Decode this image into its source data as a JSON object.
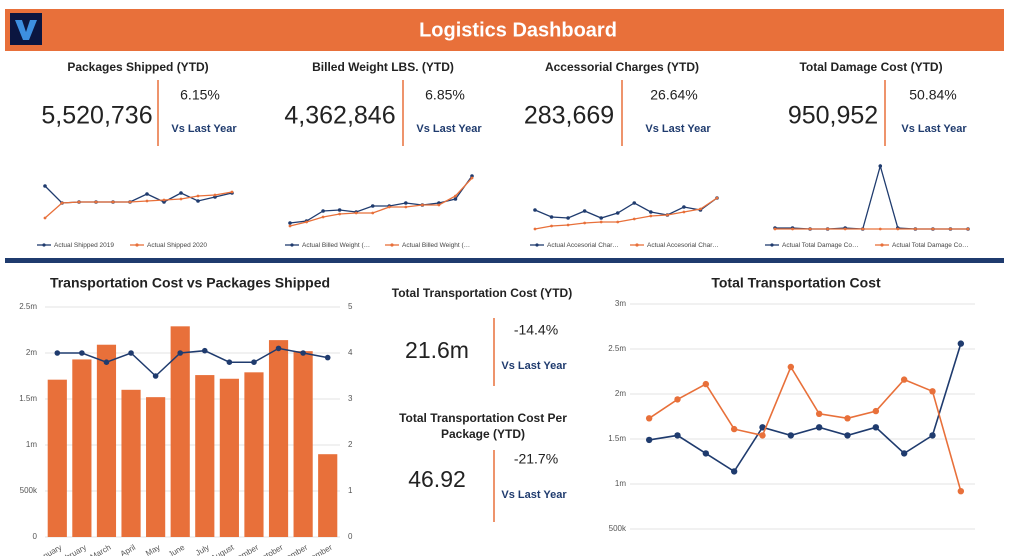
{
  "header": {
    "title": "Logistics Dashboard"
  },
  "kpis": [
    {
      "title": "Packages Shipped (YTD)",
      "value": "5,520,736",
      "change": "6.15%",
      "note": "Vs Last Year"
    },
    {
      "title": "Billed Weight LBS. (YTD)",
      "value": "4,362,846",
      "change": "6.85%",
      "note": "Vs Last Year"
    },
    {
      "title": "Accessorial Charges (YTD)",
      "value": "283,669",
      "change": "26.64%",
      "note": "Vs Last Year"
    },
    {
      "title": "Total Damage Cost (YTD)",
      "value": "950,952",
      "change": "50.84%",
      "note": "Vs Last Year"
    }
  ],
  "transport_kpis": [
    {
      "title": "Total Transportation Cost (YTD)",
      "value": "21.6m",
      "change": "-14.4%",
      "note": "Vs Last Year"
    },
    {
      "title": "Total Transportation Cost Per Package (YTD)",
      "value": "46.92",
      "change": "-21.7%",
      "note": "Vs Last Year"
    }
  ],
  "chart_data": [
    {
      "type": "line",
      "series": [
        {
          "name": "Actual Shipped 2019",
          "color": "#1f3b6e",
          "values": [
            44,
            27,
            28,
            28,
            28,
            28,
            36,
            28,
            37,
            29,
            33,
            37
          ]
        },
        {
          "name": "Actual Shipped 2020",
          "color": "#e8703a",
          "values": [
            12,
            27,
            28,
            28,
            28,
            28,
            29,
            30,
            31,
            34,
            35,
            38
          ]
        }
      ]
    },
    {
      "type": "line",
      "series": [
        {
          "name": "Actual Billed Weight (…",
          "color": "#1f3b6e",
          "values": [
            7,
            9,
            19,
            20,
            18,
            24,
            24,
            27,
            25,
            27,
            31,
            54
          ]
        },
        {
          "name": "Actual Billed Weight (…",
          "color": "#e8703a",
          "values": [
            4,
            8,
            13,
            16,
            17,
            17,
            23,
            23,
            25,
            25,
            34,
            52
          ]
        }
      ]
    },
    {
      "type": "line",
      "series": [
        {
          "name": "Actual Accesorial Char…",
          "color": "#1f3b6e",
          "values": [
            20,
            13,
            12,
            19,
            12,
            17,
            27,
            18,
            15,
            23,
            20,
            32
          ]
        },
        {
          "name": "Actual Accesorial Char…",
          "color": "#e8703a",
          "values": [
            1,
            4,
            5,
            7,
            8,
            8,
            11,
            14,
            15,
            18,
            21,
            32
          ]
        }
      ]
    },
    {
      "type": "line",
      "series": [
        {
          "name": "Actual Total Damage Co…",
          "color": "#1f3b6e",
          "values": [
            2,
            2,
            1,
            1,
            2,
            1,
            64,
            2,
            1,
            1,
            1,
            1
          ]
        },
        {
          "name": "Actual Total Damage Co…",
          "color": "#e8703a",
          "values": [
            1,
            1,
            1,
            1,
            1,
            1,
            1,
            1,
            1,
            1,
            1,
            1
          ]
        }
      ]
    },
    {
      "type": "bar",
      "title": "Transportation Cost vs Packages Shipped",
      "categories": [
        "January",
        "February",
        "March",
        "April",
        "May",
        "June",
        "July",
        "August",
        "September",
        "October",
        "November",
        "December"
      ],
      "series": [
        {
          "type": "bar",
          "color": "#e8703a",
          "values": [
            1710000,
            1930000,
            2090000,
            1600000,
            1520000,
            2290000,
            1760000,
            1720000,
            1790000,
            2140000,
            2020000,
            900000
          ]
        },
        {
          "type": "line",
          "axis": "y2",
          "color": "#1f3b6e",
          "values": [
            4.0,
            4.0,
            3.8,
            4.0,
            3.5,
            4.0,
            4.05,
            3.8,
            3.8,
            4.1,
            4.0,
            3.9
          ]
        }
      ],
      "ylim": [
        0,
        2500000
      ],
      "yticks": [
        0,
        {
          "value": 500000,
          "label": "500k"
        },
        {
          "value": 1000000,
          "label": "1m"
        },
        {
          "value": 1500000,
          "label": "1.5m"
        },
        {
          "value": 2000000,
          "label": "2m"
        },
        {
          "value": 2500000,
          "label": "2.5m"
        }
      ],
      "y2lim": [
        0,
        5
      ],
      "y2ticks": [
        0,
        1,
        2,
        3,
        4,
        5
      ],
      "grid": true
    },
    {
      "type": "line",
      "title": "Total Transportation Cost",
      "categories": [
        null,
        null,
        null,
        null,
        null,
        null,
        null,
        null,
        null,
        null,
        null,
        null
      ],
      "series": [
        {
          "color": "#1f3b6e",
          "values": [
            1490000,
            1540000,
            1340000,
            1140000,
            1630000,
            1540000,
            1630000,
            1540000,
            1630000,
            1340000,
            1540000,
            2560000
          ]
        },
        {
          "color": "#e8703a",
          "values": [
            1730000,
            1940000,
            2110000,
            1610000,
            1540000,
            2300000,
            1780000,
            1730000,
            1810000,
            2160000,
            2030000,
            920000
          ]
        }
      ],
      "ylim": [
        200000,
        3000000
      ],
      "yticks": [
        {
          "value": 500000,
          "label": "500k"
        },
        {
          "value": 1000000,
          "label": "1m"
        },
        {
          "value": 1500000,
          "label": "1.5m"
        },
        {
          "value": 2000000,
          "label": "2m"
        },
        {
          "value": 2500000,
          "label": "2.5m"
        },
        {
          "value": 3000000,
          "label": "3m"
        }
      ],
      "grid": true
    }
  ]
}
